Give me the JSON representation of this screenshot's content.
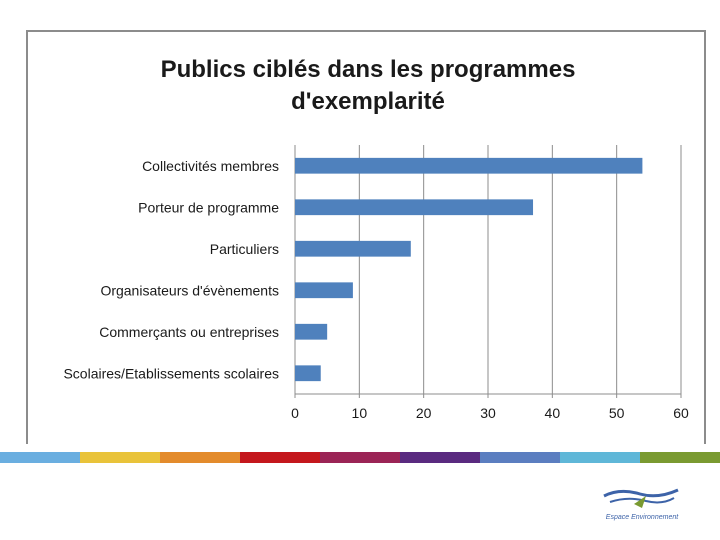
{
  "chart_data": {
    "type": "bar",
    "orientation": "horizontal",
    "title_lines": [
      "Publics ciblés dans les programmes",
      "d'exemplarité"
    ],
    "categories": [
      "Collectivités membres",
      "Porteur de programme",
      "Particuliers",
      "Organisateurs d'évènements",
      "Commerçants ou entreprises",
      "Scolaires/Etablissements scolaires"
    ],
    "values": [
      54,
      37,
      18,
      9,
      5,
      4
    ],
    "xlim": [
      0,
      60
    ],
    "xticks": [
      0,
      10,
      20,
      30,
      40,
      50,
      60
    ],
    "grid": true,
    "legend": "none",
    "bar_color": "#4f81bd"
  },
  "footer": {
    "stripe_colors": [
      "#6aaee0",
      "#e9c33a",
      "#e38b2c",
      "#c4171d",
      "#9b2456",
      "#5a2a80",
      "#5b7ec0",
      "#5fb7d8",
      "#7a9a31"
    ],
    "logo_caption": "Espace Environnement"
  }
}
